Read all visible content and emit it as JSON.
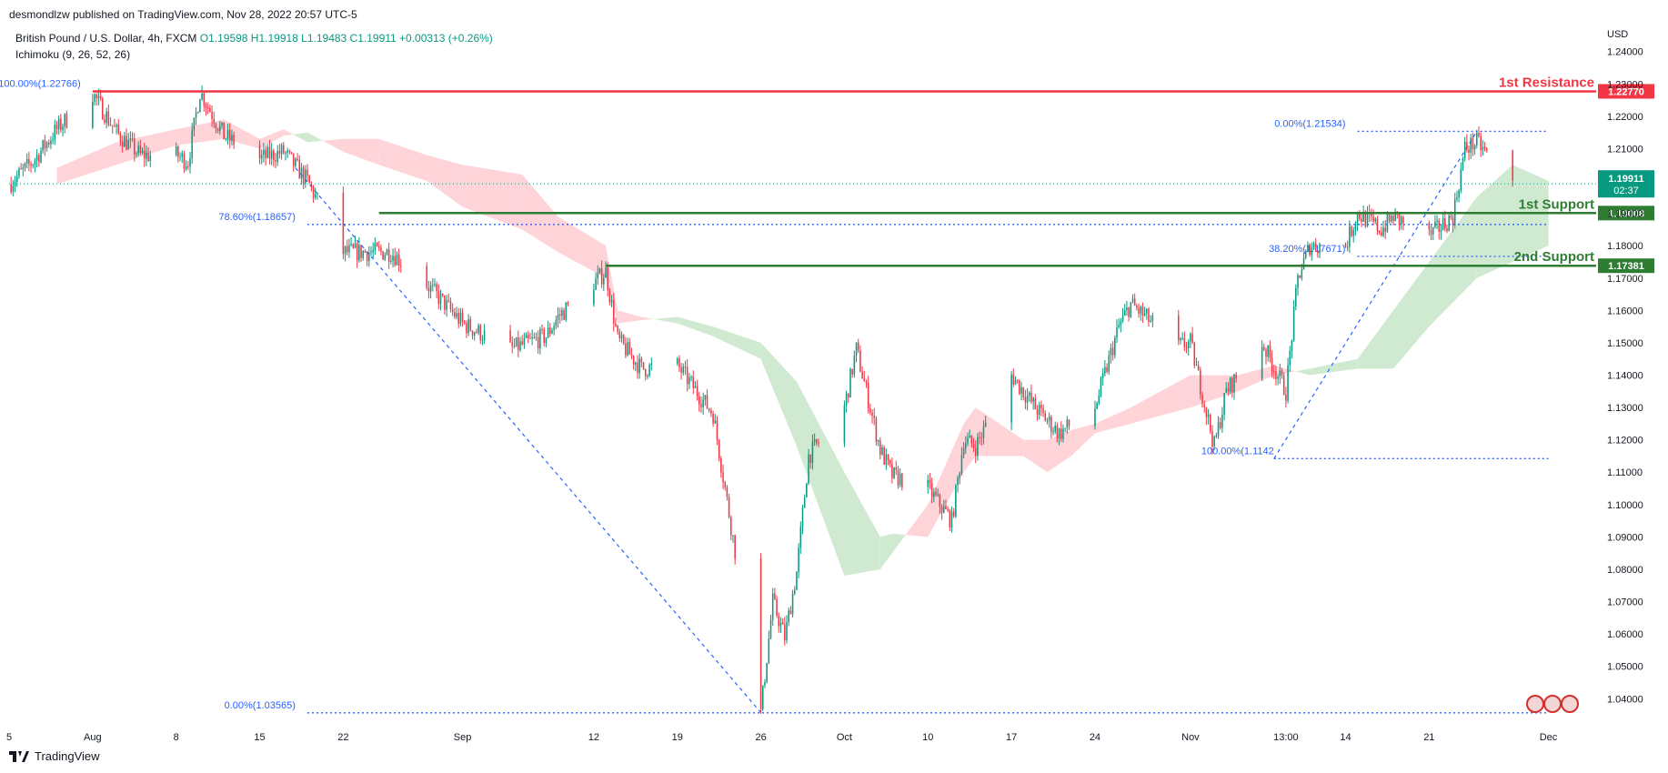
{
  "header": {
    "publisher_line": "desmondlzw published on TradingView.com, Nov 28, 2022 20:57 UTC-5",
    "symbol_prefix": "British Pound / U.S. Dollar, 4h, FXCM",
    "ohlc": "O1.19598  H1.19918  L1.19483  C1.19911  +0.00313 (+0.26%)",
    "indicator": "Ichimoku (9, 26, 52, 26)"
  },
  "footer": {
    "brand": "TradingView"
  },
  "colors": {
    "up": "#089981",
    "down": "#f23645",
    "resistance": "#f23645",
    "support": "#2e7d32",
    "fib": "#2962ff",
    "cloud_bull": "#c8e6c9",
    "cloud_bear": "#ffcdd2"
  },
  "chart_data": {
    "type": "candlestick",
    "title": "",
    "currency_label": "USD",
    "timeframe": "4h",
    "y_ticks": [
      "1.24000",
      "1.23000",
      "1.22000",
      "1.21000",
      "1.20000",
      "1.19000",
      "1.18000",
      "1.17000",
      "1.16000",
      "1.15000",
      "1.14000",
      "1.13000",
      "1.12000",
      "1.11000",
      "1.10000",
      "1.09000",
      "1.08000",
      "1.07000",
      "1.06000",
      "1.05000",
      "1.04000"
    ],
    "ylim": [
      1.0325,
      1.2475
    ],
    "x_ticks": [
      "5",
      "Aug",
      "8",
      "15",
      "22",
      "Sep",
      "12",
      "19",
      "26",
      "Oct",
      "10",
      "17",
      "24",
      "Nov",
      "13:00",
      "14",
      "21",
      "Dec"
    ],
    "x_domain": [
      "Jul 25",
      "Dec 5"
    ],
    "price_path": [
      [
        "Jul 25",
        1.199
      ],
      [
        "Jul 27",
        1.206
      ],
      [
        "Jul 29",
        1.216
      ],
      [
        "Aug 1",
        1.227
      ],
      [
        "Aug 3",
        1.215
      ],
      [
        "Aug 5",
        1.208
      ],
      [
        "Aug 8",
        1.208
      ],
      [
        "Aug 9",
        1.206
      ],
      [
        "Aug 10",
        1.2276
      ],
      [
        "Aug 12",
        1.214
      ],
      [
        "Aug 15",
        1.207
      ],
      [
        "Aug 17",
        1.209
      ],
      [
        "Aug 19",
        1.2
      ],
      [
        "Aug 22",
        1.178
      ],
      [
        "Aug 24",
        1.178
      ],
      [
        "Aug 26",
        1.178
      ],
      [
        "Aug 29",
        1.168
      ],
      [
        "Sep 1",
        1.156
      ],
      [
        "Sep 5",
        1.148
      ],
      [
        "Sep 8",
        1.152
      ],
      [
        "Sep 9",
        1.158
      ],
      [
        "Sep 13",
        1.172
      ],
      [
        "Sep 14",
        1.151
      ],
      [
        "Sep 16",
        1.142
      ],
      [
        "Sep 19",
        1.143
      ],
      [
        "Sep 22",
        1.128
      ],
      [
        "Sep 23",
        1.105
      ],
      [
        "Sep 26",
        1.0357
      ],
      [
        "Sep 27",
        1.07
      ],
      [
        "Sep 28",
        1.059
      ],
      [
        "Sep 29",
        1.079
      ],
      [
        "Sep 30",
        1.115
      ],
      [
        "Oct 3",
        1.13
      ],
      [
        "Oct 4",
        1.148
      ],
      [
        "Oct 6",
        1.117
      ],
      [
        "Oct 7",
        1.109
      ],
      [
        "Oct 10",
        1.105
      ],
      [
        "Oct 12",
        1.095
      ],
      [
        "Oct 13",
        1.12
      ],
      [
        "Oct 14",
        1.118
      ],
      [
        "Oct 17",
        1.14
      ],
      [
        "Oct 19",
        1.13
      ],
      [
        "Oct 21",
        1.122
      ],
      [
        "Oct 24",
        1.13
      ],
      [
        "Oct 26",
        1.155
      ],
      [
        "Oct 27",
        1.162
      ],
      [
        "Oct 31",
        1.149
      ],
      [
        "Nov 1",
        1.15
      ],
      [
        "Nov 3",
        1.118
      ],
      [
        "Nov 4",
        1.135
      ],
      [
        "Nov 7",
        1.15
      ],
      [
        "Nov 9",
        1.135
      ],
      [
        "Nov 10",
        1.17
      ],
      [
        "Nov 11",
        1.18
      ],
      [
        "Nov 14",
        1.18
      ],
      [
        "Nov 15",
        1.19
      ],
      [
        "Nov 17",
        1.185
      ],
      [
        "Nov 18",
        1.189
      ],
      [
        "Nov 21",
        1.183
      ],
      [
        "Nov 23",
        1.189
      ],
      [
        "Nov 24",
        1.21
      ],
      [
        "Nov 25",
        1.212
      ],
      [
        "Nov 28",
        1.1991
      ]
    ],
    "ichimoku_cloud": [
      [
        "Jul 29",
        1.199,
        1.204
      ],
      [
        "Aug 3",
        1.205,
        1.212
      ],
      [
        "Aug 8",
        1.211,
        1.216
      ],
      [
        "Aug 12",
        1.213,
        1.219
      ],
      [
        "Aug 15",
        1.21,
        1.213
      ],
      [
        "Aug 17",
        1.214,
        1.216
      ],
      [
        "Aug 19",
        1.215,
        1.212
      ],
      [
        "Aug 22",
        1.209,
        1.213
      ],
      [
        "Aug 25",
        1.205,
        1.213
      ],
      [
        "Aug 29",
        1.2,
        1.208
      ],
      [
        "Sep 1",
        1.192,
        1.205
      ],
      [
        "Sep 6",
        1.185,
        1.202
      ],
      [
        "Sep 9",
        1.178,
        1.189
      ],
      [
        "Sep 13",
        1.17,
        1.18
      ],
      [
        "Sep 14",
        1.156,
        1.16
      ],
      [
        "Sep 16",
        1.157,
        1.158
      ],
      [
        "Sep 19",
        1.158,
        1.156
      ],
      [
        "Sep 22",
        1.155,
        1.152
      ],
      [
        "Sep 26",
        1.15,
        1.145
      ],
      [
        "Sep 29",
        1.138,
        1.118
      ],
      [
        "Oct 3",
        1.11,
        1.078
      ],
      [
        "Oct 6",
        1.09,
        1.08
      ],
      [
        "Oct 7",
        1.091,
        1.085
      ],
      [
        "Oct 10",
        1.09,
        1.1
      ],
      [
        "Oct 13",
        1.11,
        1.125
      ],
      [
        "Oct 14",
        1.115,
        1.13
      ],
      [
        "Oct 18",
        1.115,
        1.12
      ],
      [
        "Oct 20",
        1.11,
        1.12
      ],
      [
        "Oct 22",
        1.115,
        1.123
      ],
      [
        "Oct 24",
        1.122,
        1.125
      ],
      [
        "Oct 27",
        1.125,
        1.13
      ],
      [
        "Nov 1",
        1.13,
        1.14
      ],
      [
        "Nov 5",
        1.135,
        1.14
      ],
      [
        "Nov 8",
        1.14,
        1.143
      ],
      [
        "Nov 11",
        1.142,
        1.14
      ],
      [
        "Nov 15",
        1.145,
        1.142
      ],
      [
        "Nov 18",
        1.16,
        1.142
      ],
      [
        "Nov 21",
        1.175,
        1.155
      ],
      [
        "Nov 25",
        1.195,
        1.17
      ],
      [
        "Nov 28",
        1.205,
        1.175
      ],
      [
        "Dec 1",
        1.2,
        1.18
      ]
    ],
    "horizontal_levels": [
      {
        "label": "1st Resistance",
        "value": 1.2277,
        "price_text": "1.22770",
        "kind": "resistance",
        "from": "Aug 1"
      },
      {
        "label": "1st Support",
        "value": 1.19008,
        "price_text": "1.19008",
        "kind": "support",
        "from": "Aug 25"
      },
      {
        "label": "2nd Support",
        "value": 1.17381,
        "price_text": "1.17381",
        "kind": "support",
        "from": "Sep 13"
      }
    ],
    "fib_levels": [
      {
        "text": "100.00%(1.22766)",
        "value": 1.22766,
        "from": "Aug 1",
        "to": "Aug 10",
        "label_at": "Jul 31"
      },
      {
        "text": "78.60%(1.18657)",
        "value": 1.18657,
        "from": "Aug 19",
        "to": "Dec 1",
        "label_at": "Aug 18"
      },
      {
        "text": "0.00%(1.03565)",
        "value": 1.03565,
        "from": "Aug 19",
        "to": "Dec 1",
        "label_at": "Aug 18"
      },
      {
        "text": "0.00%(1.21534)",
        "value": 1.21534,
        "from": "Nov 15",
        "to": "Dec 1",
        "label_at": "Nov 14"
      },
      {
        "text": "38.20%(1.17671)",
        "value": 1.17671,
        "from": "Nov 15",
        "to": "Dec 1",
        "label_at": "Nov 14"
      },
      {
        "text": "100.00%(1.1142",
        "value": 1.1142,
        "from": "Nov 8",
        "to": "Dec 1",
        "label_at": "Nov 8"
      }
    ],
    "trend_lines": [
      {
        "from": [
          "Aug 18",
          1.204
        ],
        "to": [
          "Sep 26",
          1.0357
        ]
      },
      {
        "from": [
          "Nov 8",
          1.1142
        ],
        "to": [
          "Nov 25",
          1.2153
        ]
      }
    ],
    "current_price": {
      "value": 1.19911,
      "text": "1.19911",
      "countdown": "02:37"
    }
  }
}
